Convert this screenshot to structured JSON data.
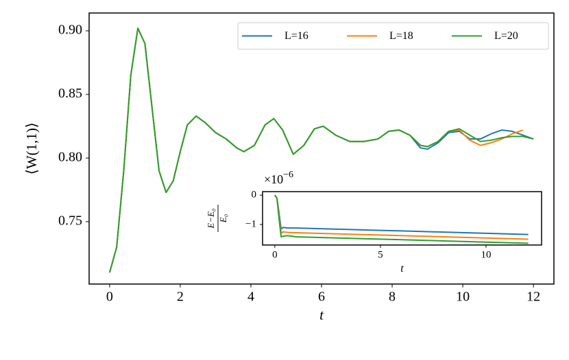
{
  "chart_data": [
    {
      "type": "line",
      "xlabel": "t",
      "ylabel": "⟨W(1,1)⟩",
      "x": [
        0,
        0.2,
        0.4,
        0.6,
        0.8,
        1.0,
        1.2,
        1.4,
        1.6,
        1.8,
        2.0,
        2.2,
        2.45,
        2.7,
        3.0,
        3.3,
        3.6,
        3.8,
        4.1,
        4.4,
        4.65,
        4.9,
        5.2,
        5.5,
        5.8,
        6.05,
        6.4,
        6.8,
        7.2,
        7.6,
        7.9,
        8.2,
        8.5,
        8.8,
        9.0,
        9.3,
        9.6,
        9.9,
        10.2,
        10.5,
        10.8,
        11.1,
        11.4,
        11.7,
        12.0
      ],
      "series": [
        {
          "name": "L=16",
          "color": "#1f77b4",
          "values": [
            0.71,
            0.73,
            0.79,
            0.865,
            0.902,
            0.89,
            0.84,
            0.79,
            0.773,
            0.782,
            0.805,
            0.826,
            0.833,
            0.828,
            0.82,
            0.815,
            0.808,
            0.805,
            0.81,
            0.826,
            0.831,
            0.822,
            0.803,
            0.81,
            0.823,
            0.825,
            0.818,
            0.813,
            0.813,
            0.815,
            0.821,
            0.822,
            0.818,
            0.808,
            0.807,
            0.812,
            0.82,
            0.821,
            0.815,
            0.815,
            0.819,
            0.822,
            0.821,
            0.818,
            0.815
          ]
        },
        {
          "name": "L=18",
          "color": "#ff7f0e",
          "values": [
            0.71,
            0.73,
            0.79,
            0.865,
            0.902,
            0.89,
            0.84,
            0.79,
            0.773,
            0.782,
            0.805,
            0.826,
            0.833,
            0.828,
            0.82,
            0.815,
            0.808,
            0.805,
            0.81,
            0.826,
            0.831,
            0.822,
            0.803,
            0.81,
            0.823,
            0.825,
            0.818,
            0.813,
            0.813,
            0.815,
            0.821,
            0.822,
            0.818,
            0.81,
            0.809,
            0.813,
            0.821,
            0.822,
            0.814,
            0.81,
            0.812,
            0.815,
            0.819,
            0.822,
            null
          ]
        },
        {
          "name": "L=20",
          "color": "#2ca02c",
          "values": [
            0.71,
            0.73,
            0.79,
            0.865,
            0.902,
            0.89,
            0.84,
            0.79,
            0.773,
            0.782,
            0.805,
            0.826,
            0.833,
            0.828,
            0.82,
            0.815,
            0.808,
            0.805,
            0.81,
            0.826,
            0.831,
            0.822,
            0.803,
            0.81,
            0.823,
            0.825,
            0.818,
            0.813,
            0.813,
            0.815,
            0.821,
            0.822,
            0.818,
            0.81,
            0.809,
            0.813,
            0.821,
            0.823,
            0.818,
            0.813,
            0.814,
            0.816,
            0.817,
            0.817,
            0.815
          ]
        }
      ],
      "xlim": [
        -0.58,
        12.58
      ],
      "ylim": [
        0.701,
        0.914
      ],
      "xticks": [
        0,
        2,
        4,
        6,
        8,
        10,
        12
      ],
      "yticks": [
        0.75,
        {
          "value": 0.8,
          "label": "0.80"
        },
        0.85,
        {
          "value": 0.9,
          "label": "0.90"
        }
      ],
      "legend": "upper right",
      "legend_columns": 3
    },
    {
      "type": "line",
      "xlabel": "t",
      "ylabel_numerator": "E−E₀",
      "ylabel_denominator": "E₀",
      "offset_label": {
        "base": "×10",
        "exponent": "−6"
      },
      "x": [
        0,
        0.1,
        0.2,
        0.3,
        0.4,
        0.6,
        1,
        2,
        3,
        4,
        5,
        6,
        7,
        8,
        9,
        10,
        11,
        12
      ],
      "series": [
        {
          "color": "#1f77b4",
          "values": [
            0,
            -0.1,
            -0.6,
            -1.15,
            -1.1,
            -1.12,
            -1.12,
            -1.14,
            -1.16,
            -1.18,
            -1.2,
            -1.22,
            -1.24,
            -1.26,
            -1.28,
            -1.3,
            -1.32,
            -1.34
          ]
        },
        {
          "color": "#ff7f0e",
          "values": [
            0,
            -0.1,
            -0.7,
            -1.3,
            -1.25,
            -1.27,
            -1.28,
            -1.3,
            -1.32,
            -1.34,
            -1.36,
            -1.38,
            -1.4,
            -1.42,
            -1.44,
            -1.46,
            -1.48,
            -1.5
          ]
        },
        {
          "color": "#2ca02c",
          "values": [
            0,
            -0.1,
            -0.8,
            -1.42,
            -1.4,
            -1.38,
            -1.42,
            -1.44,
            -1.46,
            -1.48,
            -1.5,
            -1.52,
            -1.54,
            -1.56,
            -1.58,
            -1.6,
            -1.62,
            -1.64
          ]
        }
      ],
      "xlim": [
        -0.58,
        12.63
      ],
      "ylim": [
        -1.7,
        0.12
      ],
      "xticks": [
        0,
        5,
        10
      ],
      "yticks": [
        0,
        {
          "value": -1,
          "label": "−1"
        }
      ]
    }
  ]
}
